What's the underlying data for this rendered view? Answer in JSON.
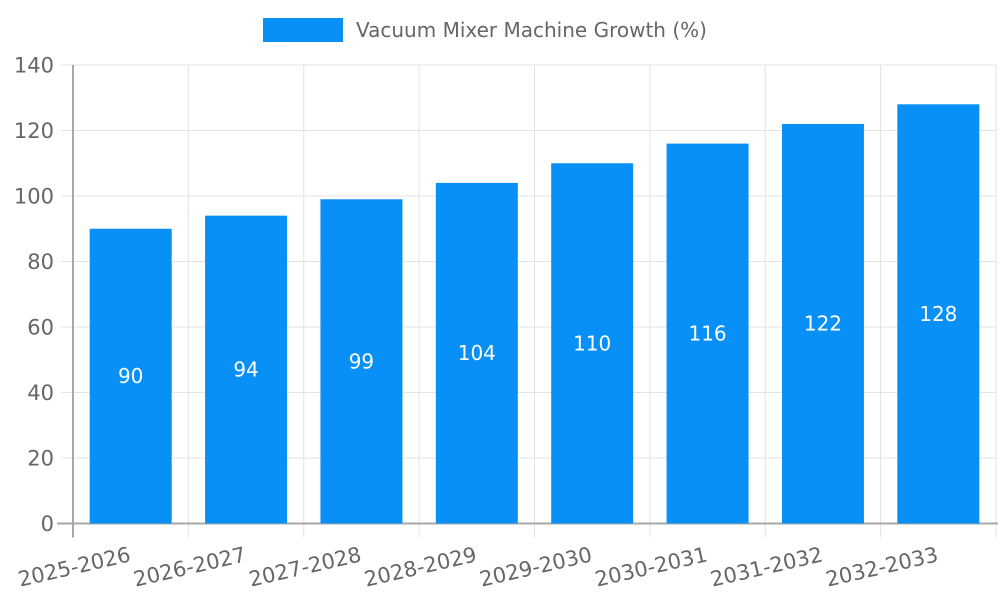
{
  "chart_data": {
    "type": "bar",
    "title": "Vacuum Mixer Machine Growth (%)",
    "categories": [
      "2025-2026",
      "2026-2027",
      "2027-2028",
      "2028-2029",
      "2029-2030",
      "2030-2031",
      "2031-2032",
      "2032-2033"
    ],
    "values": [
      90,
      94,
      99,
      104,
      110,
      116,
      122,
      128
    ],
    "xlabel": "",
    "ylabel": "",
    "ylim": [
      0,
      140
    ],
    "ytick_step": 20,
    "yticks": [
      0,
      20,
      40,
      60,
      80,
      100,
      120,
      140
    ],
    "grid": true,
    "legend_position": "top-center",
    "value_labels": "inside-center",
    "x_label_rotation_deg": -13,
    "bar_color": "#0890f7",
    "value_label_color": "#ffffff",
    "axis_color": "#a8a8a8",
    "grid_color": "#e3e3e3",
    "text_color": "#666666"
  }
}
